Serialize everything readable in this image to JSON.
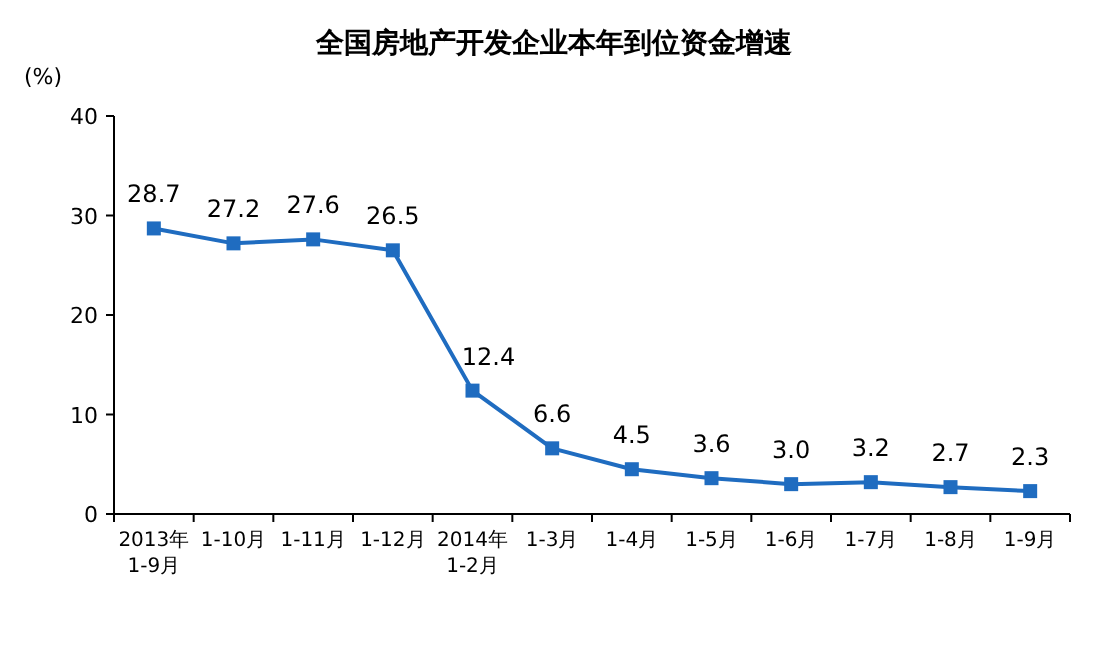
{
  "chart_data": {
    "type": "line",
    "title": "全国房地产开发企业本年到位资金增速",
    "ylabel": "(%)",
    "categories": [
      "2013年\n1-9月",
      "1-10月",
      "1-11月",
      "1-12月",
      "2014年\n1-2月",
      "1-3月",
      "1-4月",
      "1-5月",
      "1-6月",
      "1-7月",
      "1-8月",
      "1-9月"
    ],
    "series": [
      {
        "color": "#1f6cc0",
        "values": [
          28.7,
          27.2,
          27.6,
          26.5,
          12.4,
          6.6,
          4.5,
          3.6,
          3.0,
          3.2,
          2.7,
          2.3
        ],
        "value_labels": [
          "28.7",
          "27.2",
          "27.6",
          "26.5",
          "12.4",
          "6.6",
          "4.5",
          "3.6",
          "3.0",
          "3.2",
          "2.7",
          "2.3"
        ]
      }
    ],
    "ylim": [
      0,
      40
    ],
    "yticks": [
      0,
      10,
      20,
      30,
      40
    ],
    "marker": "square",
    "line_style": "solid"
  }
}
